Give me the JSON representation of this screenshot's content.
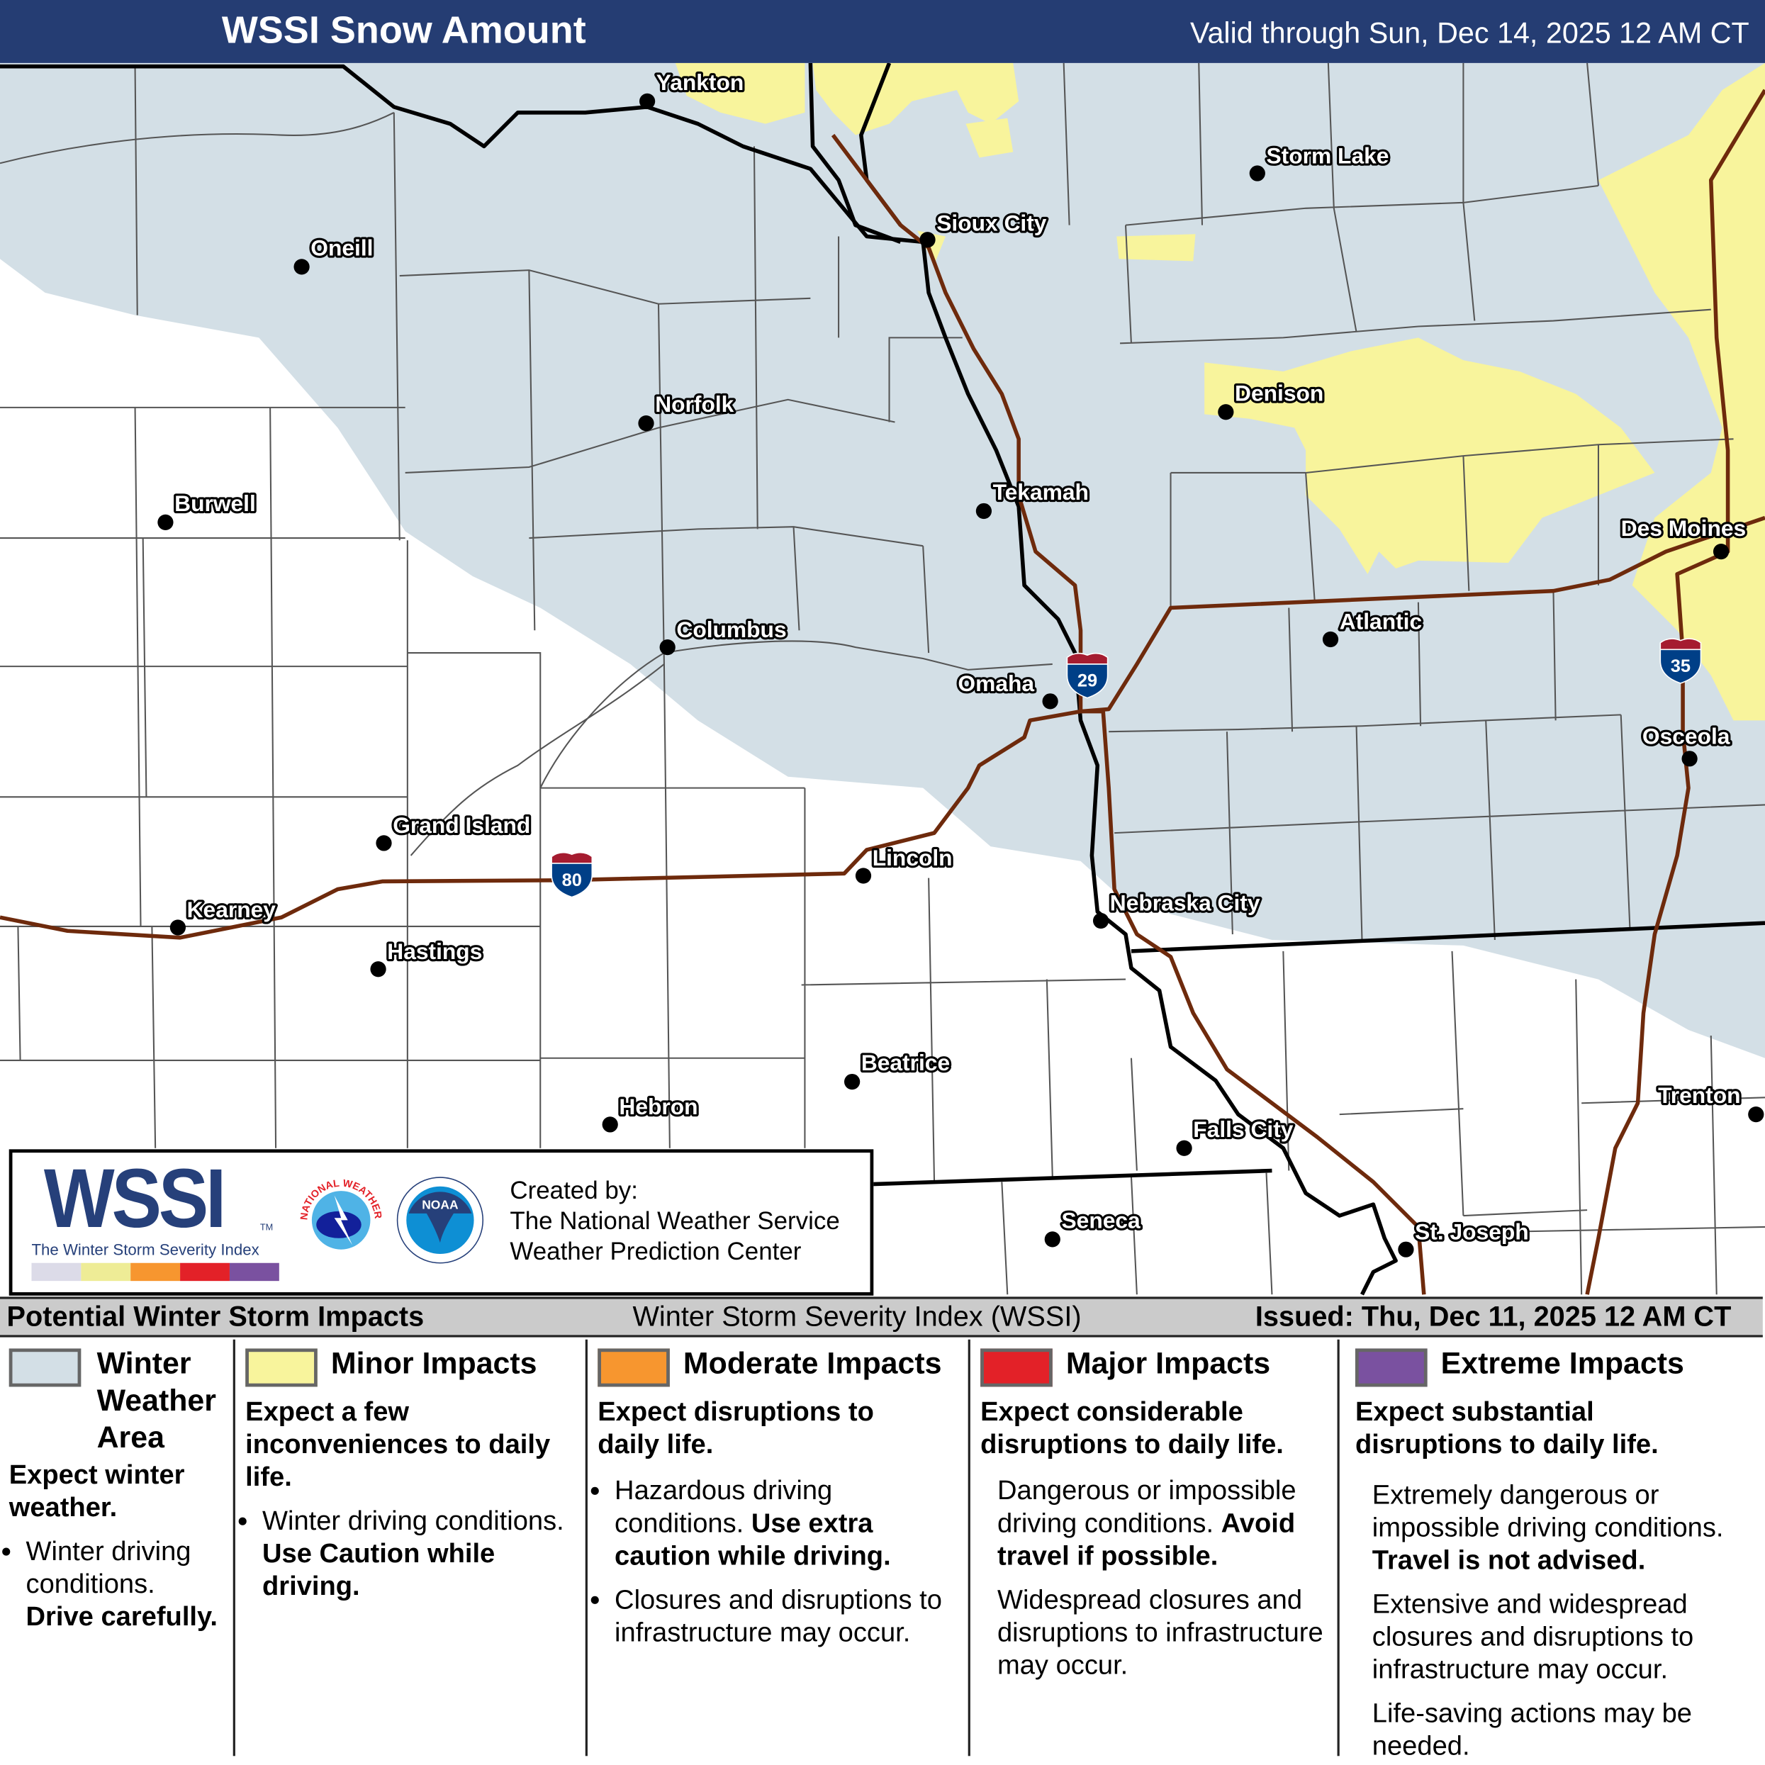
{
  "header": {
    "title": "WSSI Snow Amount",
    "valid": "Valid through Sun, Dec 14, 2025 12 AM CT"
  },
  "colors": {
    "header": "#253d73",
    "winter_weather_area": "#d3dfe6",
    "minor": "#f8f49c",
    "moderate": "#f7962f",
    "major": "#e32128",
    "extreme": "#7a51a0",
    "highway": "#6e2a0c",
    "shield_blue": "#003f87",
    "shield_red": "#a51c30"
  },
  "map": {
    "cities": [
      {
        "name": "Yankton"
      },
      {
        "name": "Storm Lake"
      },
      {
        "name": "Sioux City"
      },
      {
        "name": "Oneill"
      },
      {
        "name": "Denison"
      },
      {
        "name": "Norfolk"
      },
      {
        "name": "Burwell"
      },
      {
        "name": "Tekamah"
      },
      {
        "name": "Des Moines"
      },
      {
        "name": "Columbus"
      },
      {
        "name": "Atlantic"
      },
      {
        "name": "Omaha"
      },
      {
        "name": "Osceola"
      },
      {
        "name": "Grand Island"
      },
      {
        "name": "Lincoln"
      },
      {
        "name": "Kearney"
      },
      {
        "name": "Nebraska City"
      },
      {
        "name": "Hastings"
      },
      {
        "name": "Beatrice"
      },
      {
        "name": "Trenton"
      },
      {
        "name": "Hebron"
      },
      {
        "name": "Falls City"
      },
      {
        "name": "Seneca"
      },
      {
        "name": "St. Joseph"
      }
    ],
    "shields": [
      {
        "route": "29"
      },
      {
        "route": "80"
      },
      {
        "route": "35"
      }
    ]
  },
  "logo": {
    "wssi": "WSSI",
    "tm": "TM",
    "subtitle": "The Winter Storm Severity Index",
    "nws_text": "NATIONAL WEATHER SERVICE",
    "noaa_text": "NOAA",
    "credit_label": "Created by:",
    "credit_line1": "The National Weather Service",
    "credit_line2": "Weather Prediction Center"
  },
  "legend": {
    "heading": "Potential Winter Storm Impacts",
    "index_name": "Winter Storm Severity Index (WSSI)",
    "issued": "Issued: Thu, Dec 11, 2025 12 AM CT",
    "columns": [
      {
        "title": "Winter Weather Area",
        "subtitle": "Expect winter weather.",
        "b1_normal": "Winter driving conditions.",
        "b1_bold": "Drive carefully."
      },
      {
        "title": "Minor Impacts",
        "subtitle": "Expect a few inconveniences to daily life.",
        "b1_normal": "Winter driving conditions.",
        "b1_bold": "Use Caution while driving."
      },
      {
        "title": "Moderate Impacts",
        "subtitle": "Expect disruptions to daily life.",
        "b1_normal": "Hazardous driving conditions.",
        "b1_bold": "Use extra caution while driving.",
        "b2_normal": "Closures and disruptions to infrastructure may occur."
      },
      {
        "title": "Major Impacts",
        "subtitle": "Expect considerable disruptions to daily life.",
        "p1_normal": "Dangerous or impossible driving conditions.",
        "p1_bold": "Avoid travel if possible.",
        "p2_normal": "Widespread closures and disruptions to infrastructure may occur."
      },
      {
        "title": "Extreme Impacts",
        "subtitle": "Expect substantial disruptions to daily life.",
        "p1_normal": "Extremely dangerous or impossible driving conditions.",
        "p1_bold": "Travel is not advised.",
        "p2_normal": "Extensive and widespread closures and disruptions to infrastructure may occur.",
        "p3_normal": "Life-saving actions may be needed."
      }
    ]
  }
}
